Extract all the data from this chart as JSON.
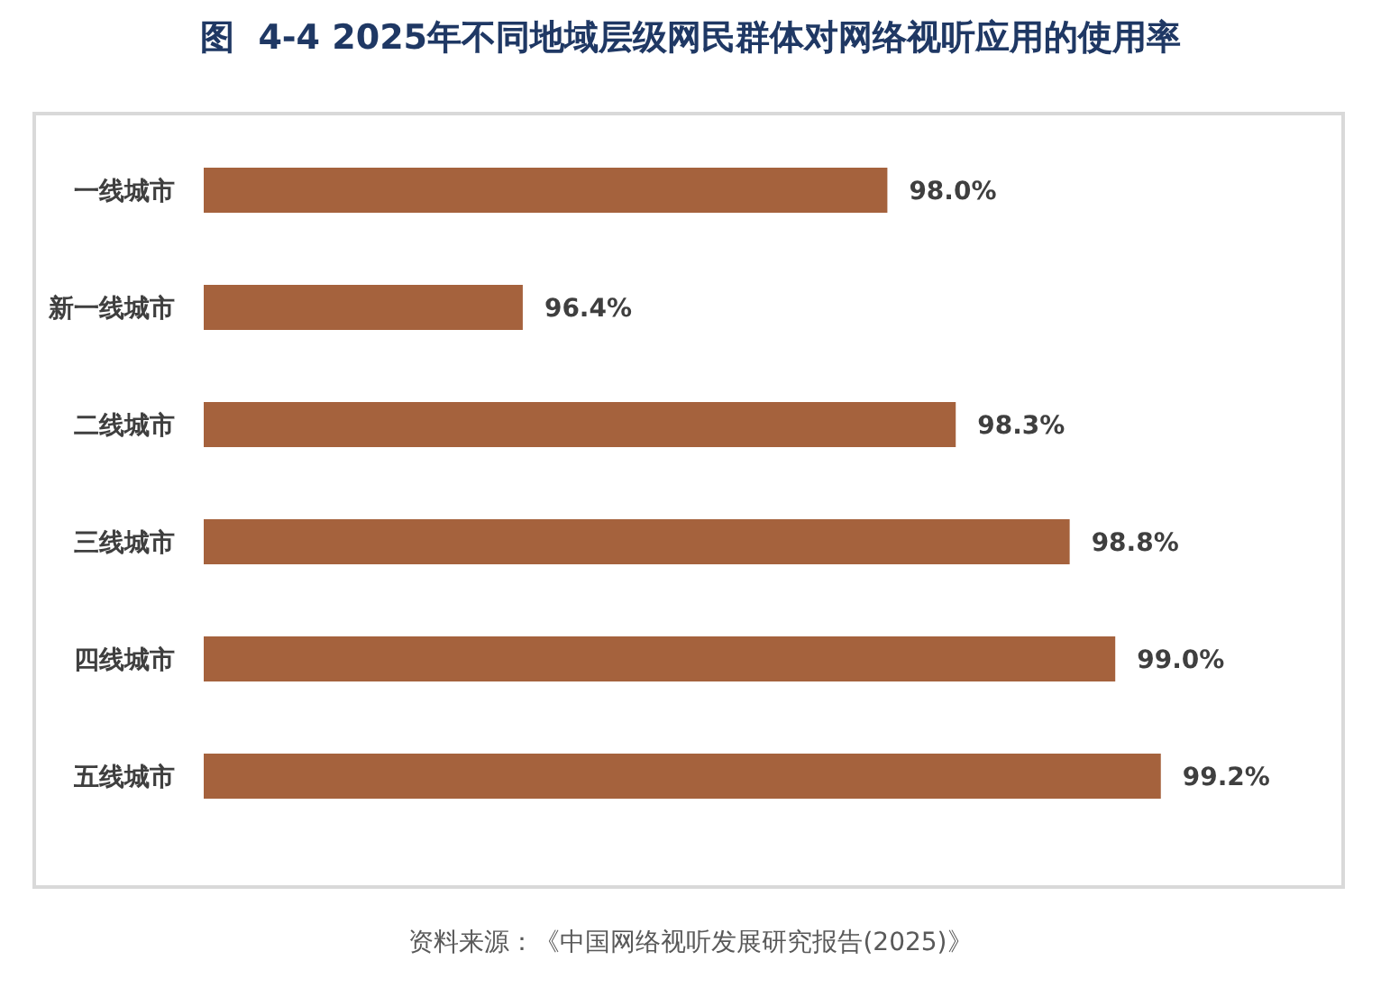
{
  "chart_data": {
    "type": "bar",
    "orientation": "horizontal",
    "title": "图  4-4 2025年不同地域层级网民群体对网络视听应用的使用率",
    "categories": [
      "一线城市",
      "新一线城市",
      "二线城市",
      "三线城市",
      "四线城市",
      "五线城市"
    ],
    "values": [
      98.0,
      96.4,
      98.3,
      98.8,
      99.0,
      99.2
    ],
    "value_labels": [
      "98.0%",
      "96.4%",
      "98.3%",
      "98.8%",
      "99.0%",
      "99.2%"
    ],
    "color": "#a5623d",
    "xlim": [
      95,
      100
    ],
    "tick_labels": "y",
    "annotations": [
      "资料来源：《中国网络视听发展研究报告(2025)》"
    ]
  }
}
